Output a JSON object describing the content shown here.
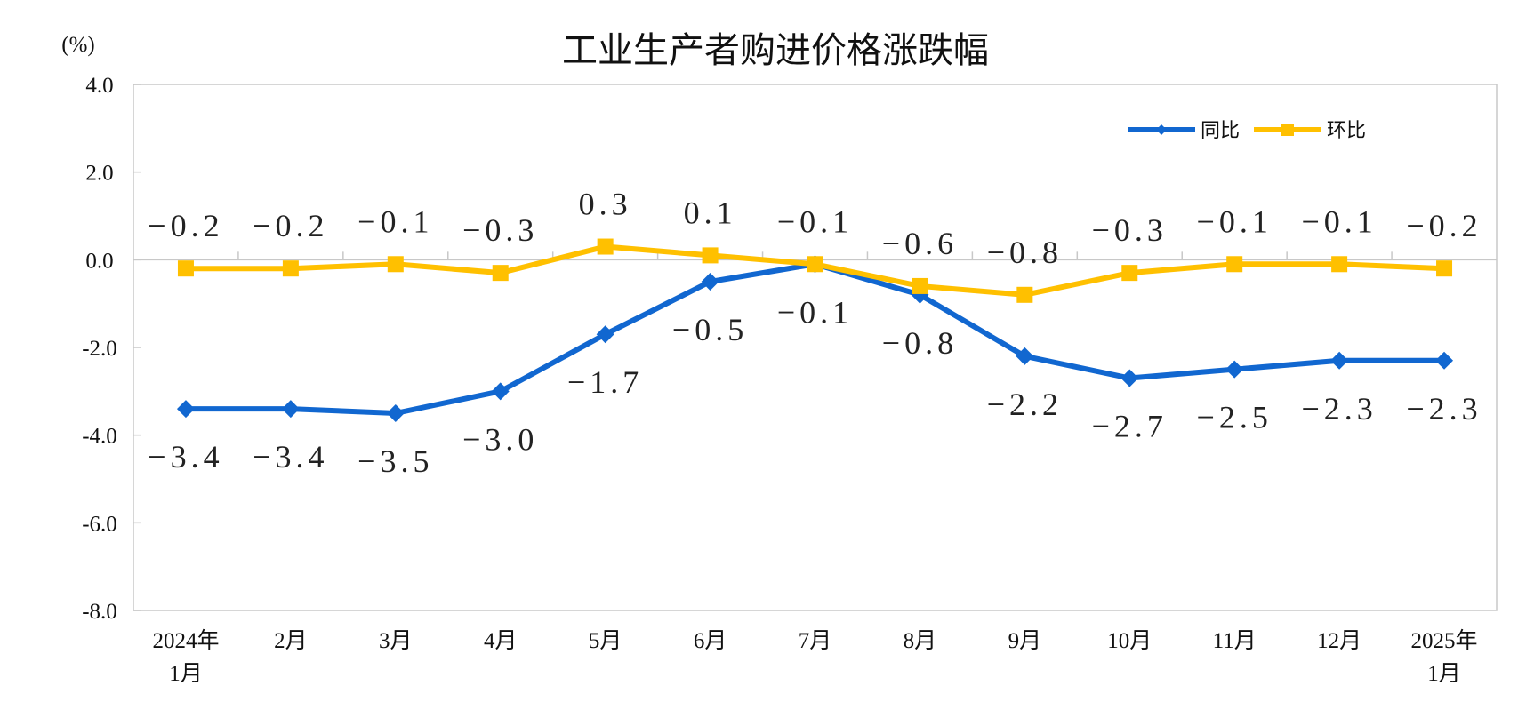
{
  "chart_data": {
    "type": "line",
    "title": "工业生产者购进价格涨跌幅",
    "ylabel": "(%)",
    "ylim": [
      -8.0,
      4.0
    ],
    "yticks": [
      "4.0",
      "2.0",
      "0.0",
      "-2.0",
      "-4.0",
      "-6.0",
      "-8.0"
    ],
    "ytick_values": [
      4,
      2,
      0,
      -2,
      -4,
      -6,
      -8
    ],
    "categories": [
      [
        "2024年",
        "1月"
      ],
      [
        "2月"
      ],
      [
        "3月"
      ],
      [
        "4月"
      ],
      [
        "5月"
      ],
      [
        "6月"
      ],
      [
        "7月"
      ],
      [
        "8月"
      ],
      [
        "9月"
      ],
      [
        "10月"
      ],
      [
        "11月"
      ],
      [
        "12月"
      ],
      [
        "2025年",
        "1月"
      ]
    ],
    "legend_placement": "top-right",
    "grid": false,
    "series": [
      {
        "name": "同比",
        "color": "#1167D0",
        "marker": "diamond",
        "values": [
          -3.4,
          -3.4,
          -3.5,
          -3.0,
          -1.7,
          -0.5,
          -0.1,
          -0.8,
          -2.2,
          -2.7,
          -2.5,
          -2.3,
          -2.3
        ],
        "labels": [
          "-3.4",
          "-3.4",
          "-3.5",
          "-3.0",
          "-1.7",
          "-0.5",
          "-0.1",
          "-0.8",
          "-2.2",
          "-2.7",
          "-2.5",
          "-2.3",
          "-2.3"
        ]
      },
      {
        "name": "环比",
        "color": "#FFC000",
        "marker": "square",
        "values": [
          -0.2,
          -0.2,
          -0.1,
          -0.3,
          0.3,
          0.1,
          -0.1,
          -0.6,
          -0.8,
          -0.3,
          -0.1,
          -0.1,
          -0.2
        ],
        "labels": [
          "-0.2",
          "-0.2",
          "-0.1",
          "-0.3",
          "0.3",
          "0.1",
          "-0.1",
          "-0.6",
          "-0.8",
          "-0.3",
          "-0.1",
          "-0.1",
          "-0.2"
        ]
      }
    ]
  }
}
